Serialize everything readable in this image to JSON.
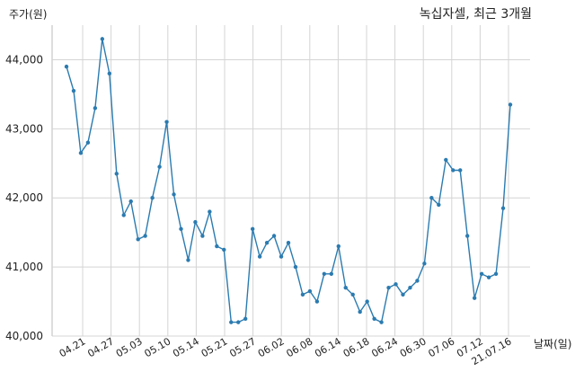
{
  "chart_data": {
    "type": "line",
    "title": "녹십자셀, 최근 3개월",
    "ylabel": "주가(원)",
    "xlabel": "날짜(일)",
    "ylim": [
      40000,
      44500
    ],
    "yticks": [
      40000,
      41000,
      42000,
      43000,
      44000
    ],
    "ytick_labels": [
      "40,000",
      "41,000",
      "42,000",
      "43,000",
      "44,000"
    ],
    "xtick_labels": [
      "04.21",
      "04.27",
      "05.03",
      "05.10",
      "05.14",
      "05.21",
      "05.27",
      "06.02",
      "06.08",
      "06.14",
      "06.18",
      "06.24",
      "06.30",
      "07.06",
      "07.12",
      "21.07.16"
    ],
    "grid": true,
    "line_color": "#2b7bb0",
    "series": [
      {
        "values": [
          43900,
          43550,
          42650,
          42800,
          43300,
          44300,
          43800,
          42350,
          41750,
          41950,
          41400,
          41450,
          42000,
          42450,
          43100,
          42050,
          41550,
          41100,
          41650,
          41450,
          41800,
          41300,
          41250,
          40200,
          40200,
          40250,
          41550,
          41150,
          41350,
          41450,
          41150,
          41350,
          41000,
          40600,
          40650,
          40500,
          40900,
          40900,
          41300,
          40700,
          40600,
          40350,
          40500,
          40250,
          40200,
          40700,
          40750,
          40600,
          40700,
          40800,
          41050,
          42000,
          41900,
          42550,
          42400,
          42400,
          41450,
          40550,
          40900,
          40850,
          40900,
          41850,
          43350
        ]
      }
    ]
  }
}
